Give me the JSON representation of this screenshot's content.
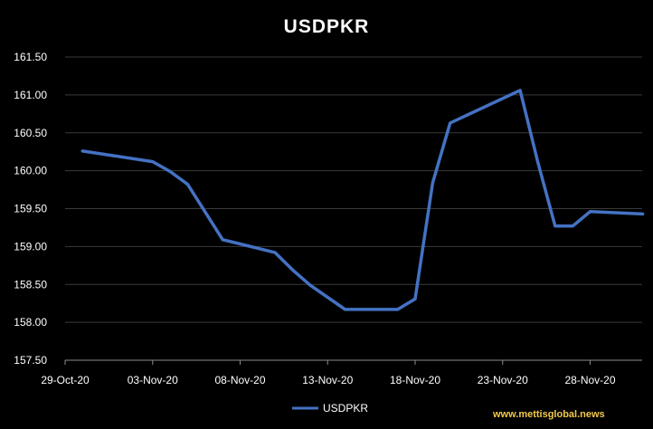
{
  "chart_data": {
    "type": "line",
    "title": "USDPKR",
    "xlabel": "",
    "ylabel": "",
    "x_tick_labels": [
      "29-Oct-20",
      "03-Nov-20",
      "08-Nov-20",
      "13-Nov-20",
      "18-Nov-20",
      "23-Nov-20",
      "28-Nov-20"
    ],
    "y_tick_labels": [
      "157.50",
      "158.00",
      "158.50",
      "159.00",
      "159.50",
      "160.00",
      "160.50",
      "161.00",
      "161.50"
    ],
    "ylim": [
      157.5,
      161.5
    ],
    "xlim": [
      "29-Oct-20",
      "01-Dec-20"
    ],
    "grid": true,
    "legend_position": "bottom",
    "series": [
      {
        "name": "USDPKR",
        "color": "#4472c4",
        "points": [
          {
            "x": "30-Oct-20",
            "y": 160.26
          },
          {
            "x": "03-Nov-20",
            "y": 160.12
          },
          {
            "x": "04-Nov-20",
            "y": 159.99
          },
          {
            "x": "05-Nov-20",
            "y": 159.82
          },
          {
            "x": "07-Nov-20",
            "y": 159.09
          },
          {
            "x": "10-Nov-20",
            "y": 158.92
          },
          {
            "x": "11-Nov-20",
            "y": 158.69
          },
          {
            "x": "12-Nov-20",
            "y": 158.49
          },
          {
            "x": "14-Nov-20",
            "y": 158.17
          },
          {
            "x": "17-Nov-20",
            "y": 158.17
          },
          {
            "x": "18-Nov-20",
            "y": 158.31
          },
          {
            "x": "19-Nov-20",
            "y": 159.84
          },
          {
            "x": "20-Nov-20",
            "y": 160.63
          },
          {
            "x": "24-Nov-20",
            "y": 161.06
          },
          {
            "x": "25-Nov-20",
            "y": 160.12
          },
          {
            "x": "26-Nov-20",
            "y": 159.27
          },
          {
            "x": "27-Nov-20",
            "y": 159.27
          },
          {
            "x": "28-Nov-20",
            "y": 159.46
          },
          {
            "x": "01-Dec-20",
            "y": 159.43
          }
        ]
      }
    ]
  },
  "watermark": "www.mettisglobal.news",
  "colors": {
    "background": "#000000",
    "line": "#4472c4",
    "gridline": "#3a3a3a",
    "text": "#ffffff",
    "watermark": "#f2c84b"
  }
}
